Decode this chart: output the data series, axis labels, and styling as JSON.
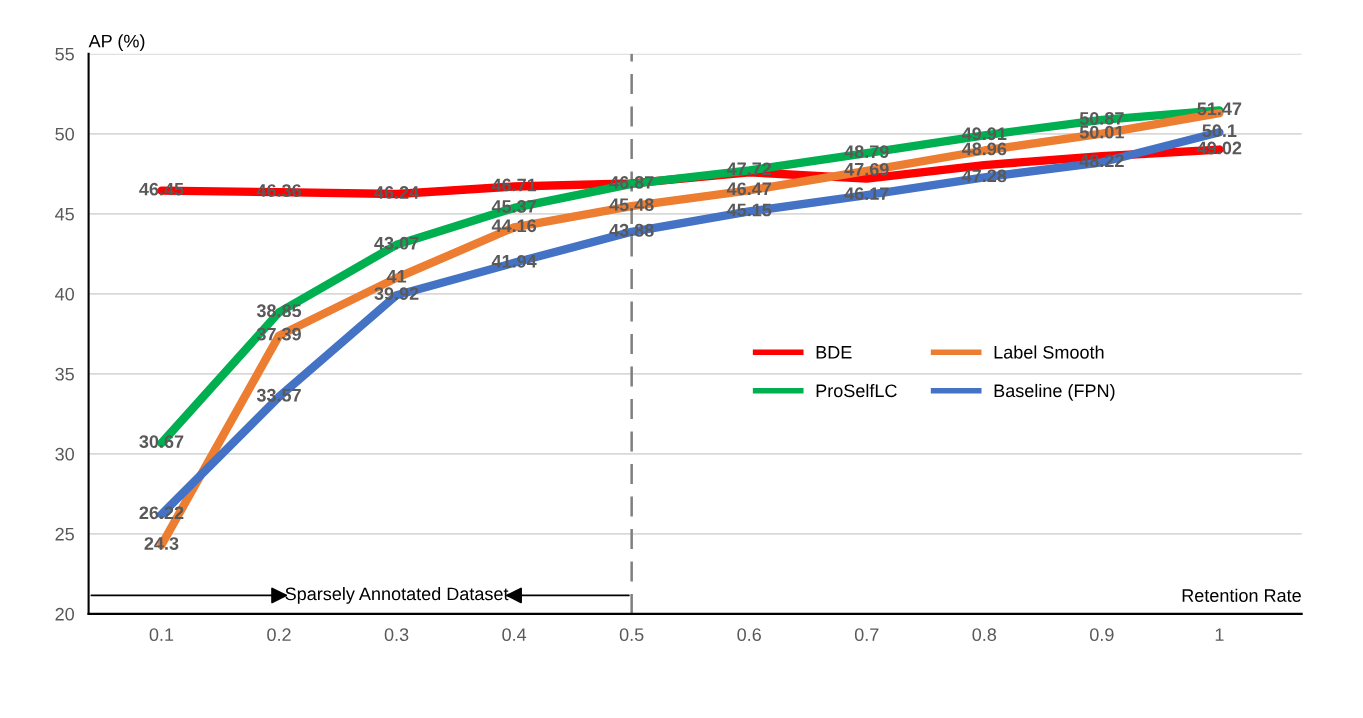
{
  "chart_data": {
    "type": "line",
    "xlabel": "Retention Rate",
    "ylabel": "AP (%)",
    "categories": [
      "0.1",
      "0.2",
      "0.3",
      "0.4",
      "0.5",
      "0.6",
      "0.7",
      "0.8",
      "0.9",
      "1"
    ],
    "ylim": [
      20,
      55
    ],
    "yticks": [
      20,
      25,
      30,
      35,
      40,
      45,
      50,
      55
    ],
    "grid": "y",
    "legend": "right",
    "marker": "none",
    "line_style": "solid",
    "series": [
      {
        "name": "BDE",
        "color": "#ff0000",
        "values": [
          46.45,
          46.36,
          46.24,
          46.71,
          46.9,
          47.6,
          47.2,
          48.05,
          48.6,
          49.02
        ],
        "value_labels": [
          "46.45",
          "46.36",
          "46.24",
          "46.71",
          null,
          null,
          null,
          null,
          null,
          "49.02"
        ]
      },
      {
        "name": "ProSelfLC",
        "color": "#00b050",
        "values": [
          30.67,
          38.85,
          43.07,
          45.37,
          46.87,
          47.72,
          48.79,
          49.91,
          50.87,
          51.47
        ],
        "value_labels": [
          "30.67",
          "38.85",
          "43.07",
          "45.37",
          "46.87",
          "47.72",
          "48.79",
          "49.91",
          "50.87",
          "51.47"
        ]
      },
      {
        "name": "Label Smooth",
        "color": "#ed7d31",
        "values": [
          24.3,
          37.39,
          41,
          44.16,
          45.48,
          46.47,
          47.69,
          48.96,
          50.01,
          51.3
        ],
        "value_labels": [
          "24.3",
          "37.39",
          "41",
          "44.16",
          "45.48",
          "46.47",
          "47.69",
          "48.96",
          "50.01",
          null
        ]
      },
      {
        "name": "Baseline (FPN)",
        "color": "#4472c4",
        "values": [
          26.22,
          33.57,
          39.92,
          41.94,
          43.88,
          45.15,
          46.17,
          47.28,
          48.22,
          50.1
        ],
        "value_labels": [
          "26.22",
          "33.57",
          "39.92",
          "41.94",
          "43.88",
          "45.15",
          "46.17",
          "47.28",
          "48.22",
          "50.1"
        ]
      }
    ],
    "ref_lines": [
      {
        "axis": "x",
        "value": "0.5",
        "color": "#7f7f7f",
        "line_style": "dashed"
      }
    ],
    "annotations": [
      "Sparsely Annotated Dataset"
    ]
  }
}
